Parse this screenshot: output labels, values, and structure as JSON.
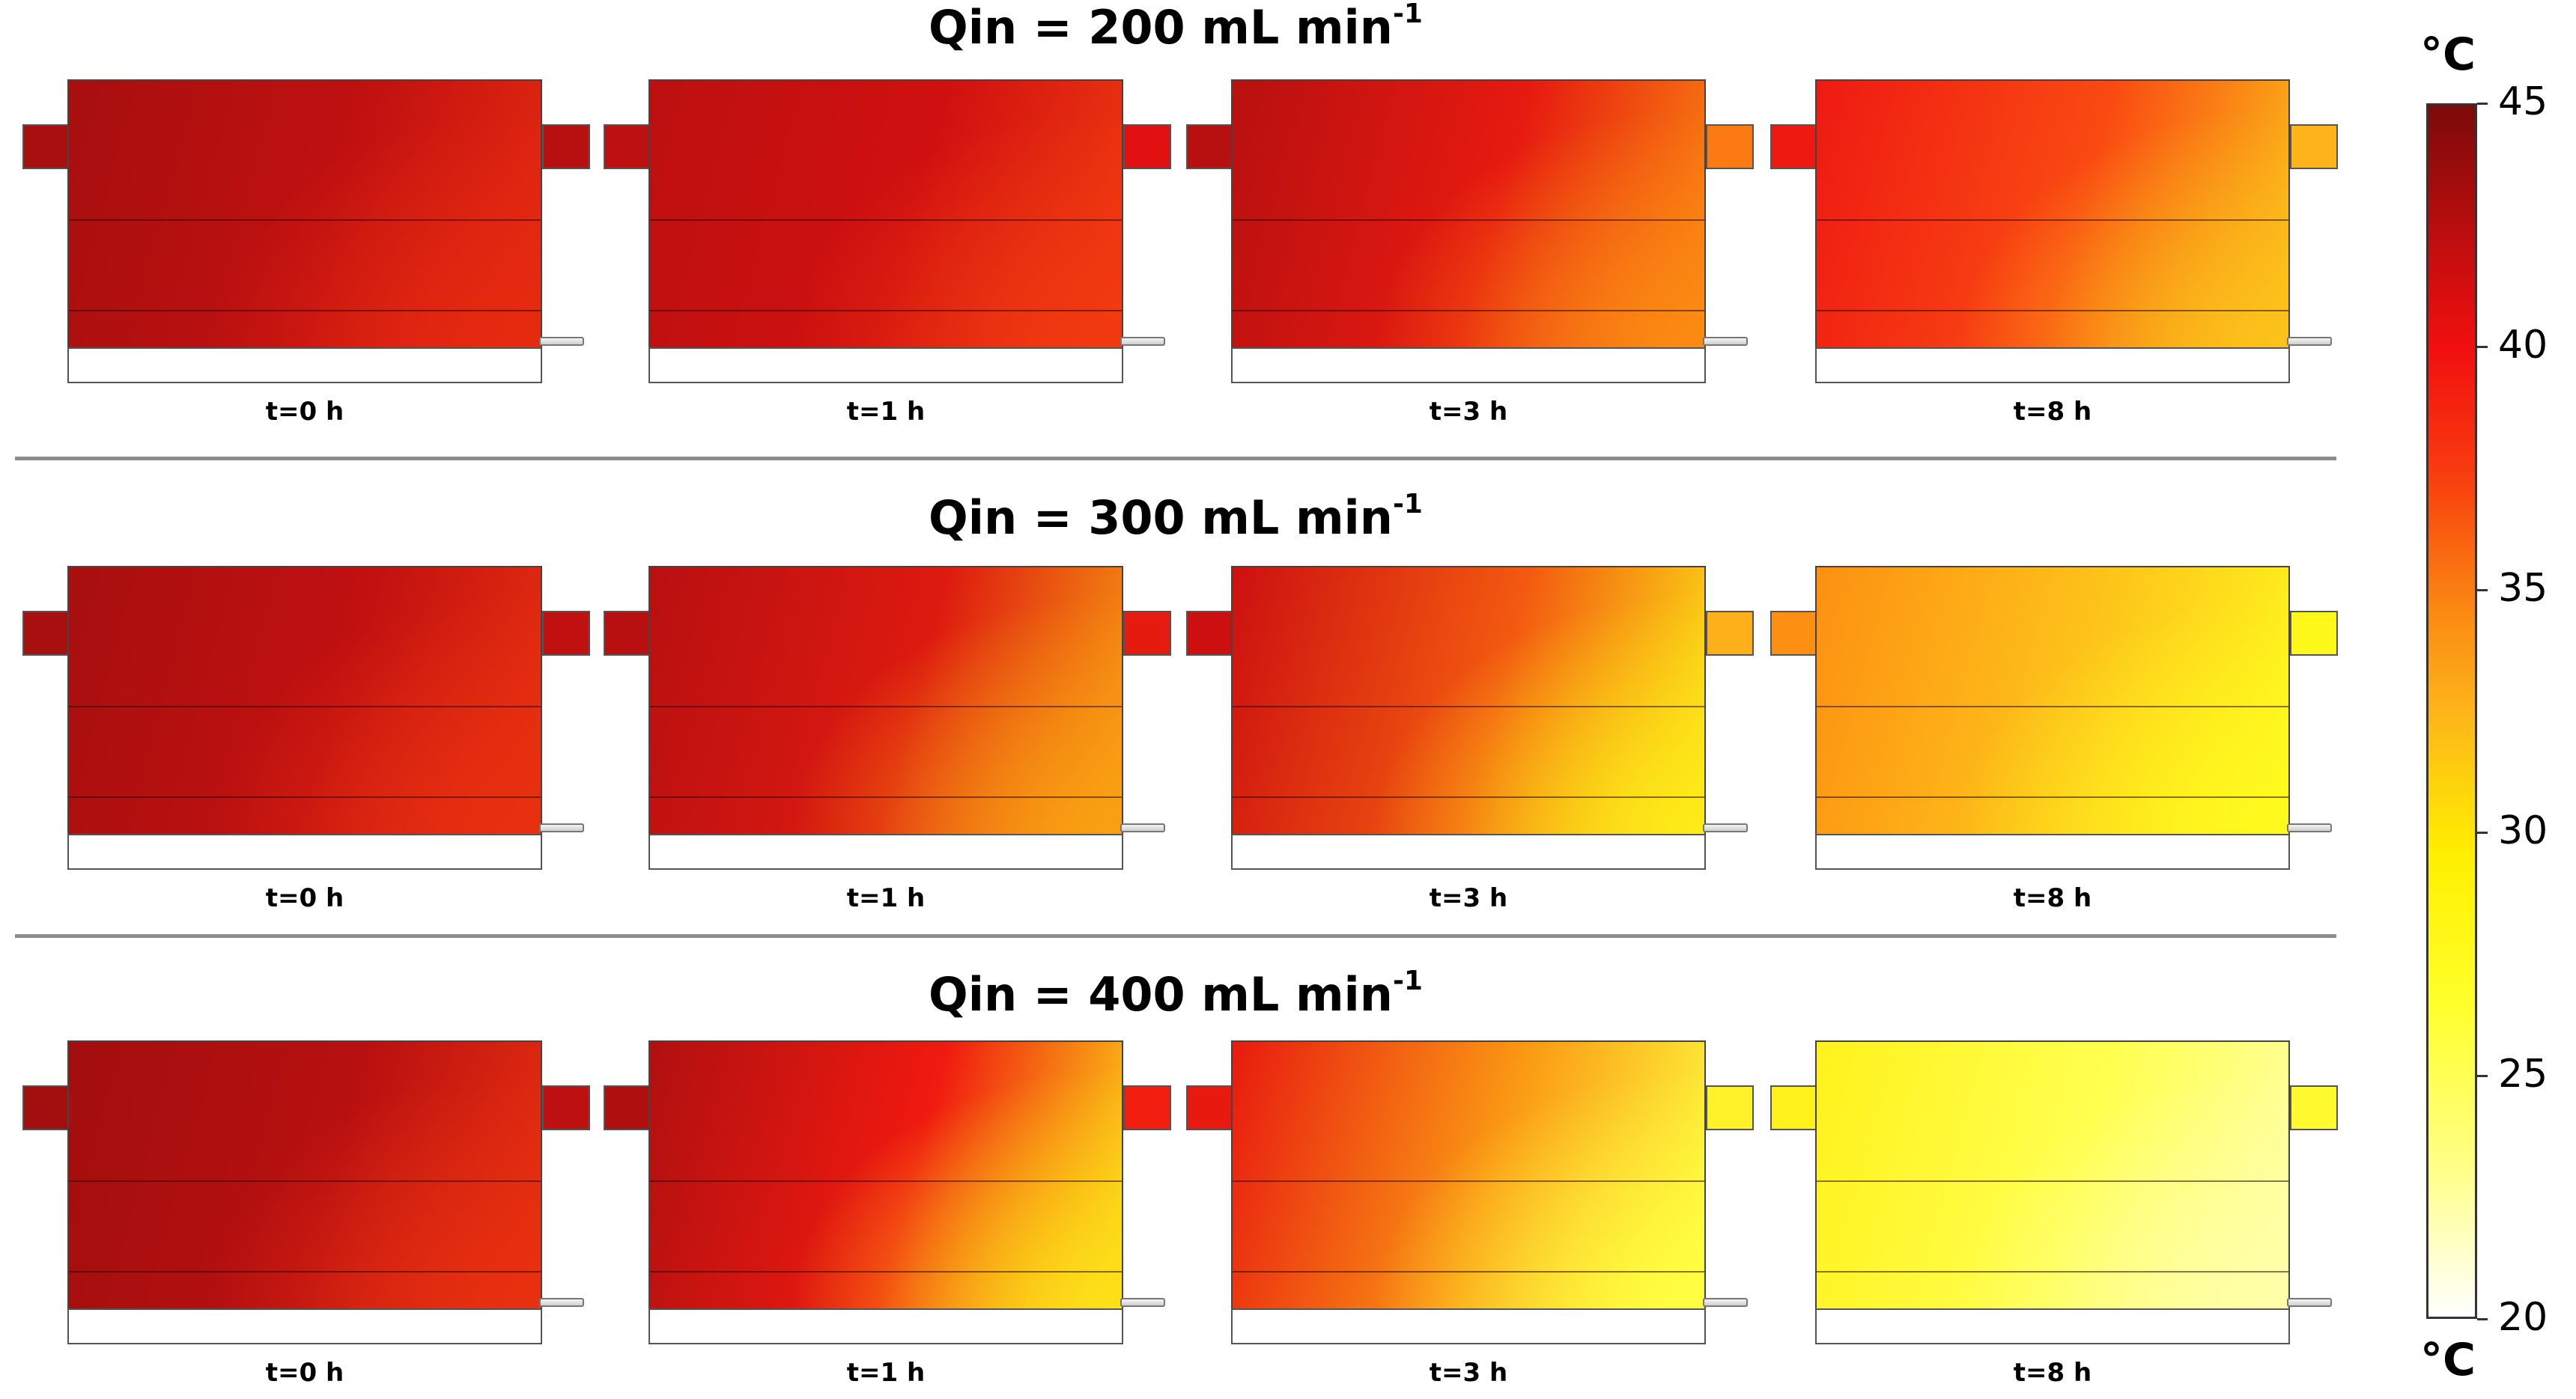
{
  "rows": [
    {
      "title_main": "Qin = 200 mL min",
      "title_sup": "-1",
      "panels": [
        {
          "label": "t=0 h",
          "colors": [
            "#a80f0f",
            "#c01010",
            "#e62a10"
          ],
          "tabs": "#b81010"
        },
        {
          "label": "t=1 h",
          "colors": [
            "#bd1010",
            "#d01010",
            "#f13a10"
          ],
          "tabs": "#e01010"
        },
        {
          "label": "t=3 h",
          "colors": [
            "#b81010",
            "#e61a10",
            "#fb8a12"
          ],
          "tabs": "#fd7a12"
        },
        {
          "label": "t=8 h",
          "colors": [
            "#ee1a12",
            "#fa4a12",
            "#fbc21a"
          ],
          "tabs": "#fdb41a"
        }
      ]
    },
    {
      "title_main": "Qin = 300 mL min",
      "title_sup": "-1",
      "panels": [
        {
          "label": "t=0 h",
          "colors": [
            "#a80f0f",
            "#c01010",
            "#e83010"
          ],
          "tabs": "#c01010"
        },
        {
          "label": "t=1 h",
          "colors": [
            "#b81010",
            "#dd1a10",
            "#f9a012"
          ],
          "tabs": "#e51b10"
        },
        {
          "label": "t=3 h",
          "colors": [
            "#cc1010",
            "#f35a10",
            "#fdea18"
          ],
          "tabs": "#fdb01a"
        },
        {
          "label": "t=8 h",
          "colors": [
            "#fd9012",
            "#fdc41a",
            "#fffa1e"
          ],
          "tabs": "#fff81a"
        }
      ]
    },
    {
      "title_main": "Qin = 400 mL min",
      "title_sup": "-1",
      "panels": [
        {
          "label": "t=0 h",
          "colors": [
            "#a30e0e",
            "#b81010",
            "#e83010"
          ],
          "tabs": "#bd1010"
        },
        {
          "label": "t=1 h",
          "colors": [
            "#b01010",
            "#f01a10",
            "#fde018"
          ],
          "tabs": "#f21f10"
        },
        {
          "label": "t=3 h",
          "colors": [
            "#e81a10",
            "#fb9a14",
            "#ffff40"
          ],
          "tabs": "#fff22a"
        },
        {
          "label": "t=8 h",
          "colors": [
            "#fff21c",
            "#ffff50",
            "#ffffa8"
          ],
          "tabs": "#fffa30"
        }
      ]
    }
  ],
  "colorbar": {
    "unit_top": "°C",
    "unit_bottom": "°C",
    "ticks": [
      "45",
      "40",
      "35",
      "30",
      "25",
      "20"
    ],
    "min": 20,
    "max": 45
  }
}
